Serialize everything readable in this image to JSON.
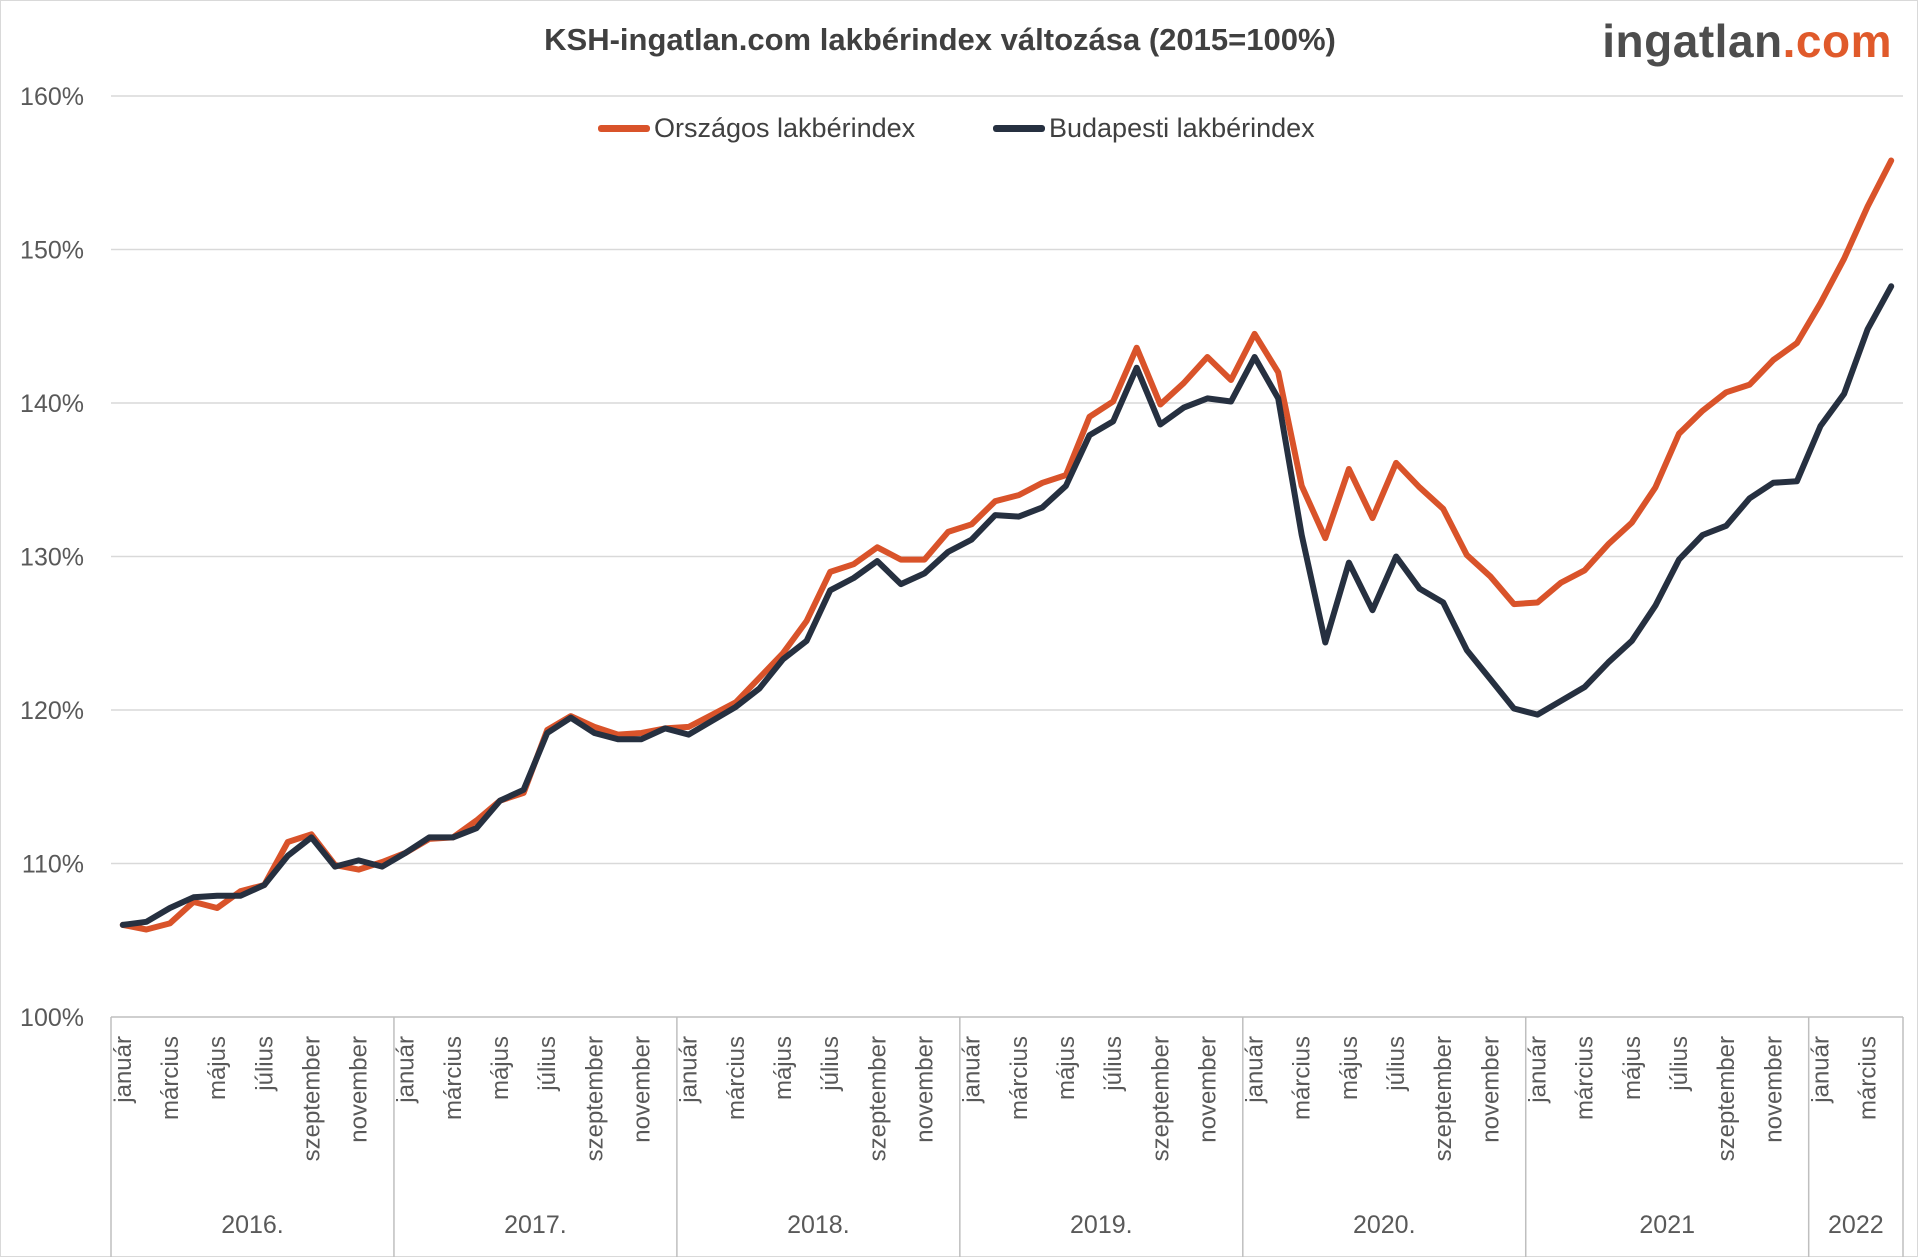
{
  "title": "KSH-ingatlan.com lakbérindex változása (2015=100%)",
  "logo": {
    "main": "ingatlan",
    "accent": ".com"
  },
  "colors": {
    "orszagos": "#d9532a",
    "budapest": "#263040",
    "grid": "#d9d9d9",
    "axis": "#bfbfbf",
    "logo_accent": "#e05a2b"
  },
  "chart_data": {
    "type": "line",
    "title": "KSH-ingatlan.com lakbérindex változása (2015=100%)",
    "xlabel": "",
    "ylabel": "",
    "ylim": [
      100,
      160
    ],
    "y_ticks": [
      "100%",
      "110%",
      "120%",
      "130%",
      "140%",
      "150%",
      "160%"
    ],
    "y_tick_values": [
      100,
      110,
      120,
      130,
      140,
      150,
      160
    ],
    "grid": true,
    "legend_position": "top-center",
    "years": [
      {
        "label": "2016.",
        "months": 12
      },
      {
        "label": "2017.",
        "months": 12
      },
      {
        "label": "2018.",
        "months": 12
      },
      {
        "label": "2019.",
        "months": 12
      },
      {
        "label": "2020.",
        "months": 12
      },
      {
        "label": "2021",
        "months": 12
      },
      {
        "label": "2022",
        "months": 4
      }
    ],
    "month_labels": [
      "január",
      "",
      "március",
      "",
      "május",
      "",
      "július",
      "",
      "szeptember",
      "",
      "november",
      ""
    ],
    "series": [
      {
        "name": "Országos lakbérindex",
        "color": "#d9532a",
        "values": [
          106.0,
          105.7,
          106.1,
          107.5,
          107.1,
          108.2,
          108.6,
          111.4,
          111.9,
          109.9,
          109.6,
          110.1,
          110.7,
          111.6,
          111.7,
          112.8,
          114.1,
          114.6,
          118.7,
          119.6,
          118.9,
          118.4,
          118.5,
          118.8,
          118.9,
          119.7,
          120.5,
          122.1,
          123.7,
          125.8,
          129.0,
          129.5,
          130.6,
          129.8,
          129.8,
          131.6,
          132.1,
          133.6,
          134.0,
          134.8,
          135.3,
          139.1,
          140.1,
          143.6,
          139.9,
          141.3,
          143.0,
          141.5,
          144.5,
          142.0,
          134.6,
          131.2,
          135.7,
          132.5,
          136.1,
          134.5,
          133.1,
          130.1,
          128.7,
          126.9,
          127.0,
          128.3,
          129.1,
          130.8,
          132.2,
          134.5,
          138.0,
          139.5,
          140.7,
          141.2,
          142.8,
          143.9,
          146.5,
          149.4,
          152.8,
          155.8
        ]
      },
      {
        "name": "Budapesti lakbérindex",
        "color": "#263040",
        "values": [
          106.0,
          106.2,
          107.1,
          107.8,
          107.9,
          107.9,
          108.6,
          110.5,
          111.7,
          109.8,
          110.2,
          109.8,
          110.7,
          111.7,
          111.7,
          112.3,
          114.1,
          114.8,
          118.5,
          119.5,
          118.5,
          118.1,
          118.1,
          118.8,
          118.4,
          119.3,
          120.2,
          121.4,
          123.3,
          124.5,
          127.8,
          128.6,
          129.7,
          128.2,
          128.9,
          130.3,
          131.1,
          132.7,
          132.6,
          133.2,
          134.6,
          137.9,
          138.8,
          142.3,
          138.6,
          139.7,
          140.3,
          140.1,
          143.0,
          140.3,
          131.4,
          124.4,
          129.6,
          126.5,
          130.0,
          127.9,
          127.0,
          123.9,
          122.0,
          120.1,
          119.7,
          120.6,
          121.5,
          123.1,
          124.5,
          126.8,
          129.8,
          131.4,
          132.0,
          133.8,
          134.8,
          134.9,
          138.5,
          140.6,
          144.8,
          147.6
        ]
      }
    ]
  }
}
